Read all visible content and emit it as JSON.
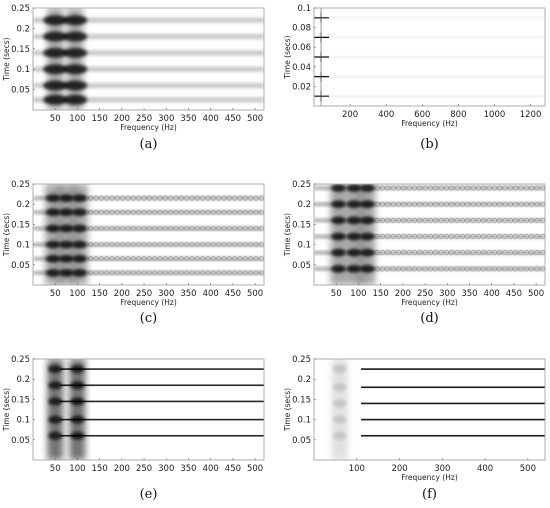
{
  "chart_data": [
    {
      "id": "a",
      "caption": "(a)",
      "type": "heatmap",
      "xlabel": "Frequency (Hz)",
      "ylabel": "Time (secs)",
      "xlim": [
        0,
        520
      ],
      "ylim": [
        0,
        0.25
      ],
      "xticks": [
        "50",
        "100",
        "150",
        "200",
        "250",
        "300",
        "350",
        "400",
        "450",
        "500"
      ],
      "xtick_values": [
        50,
        100,
        150,
        200,
        250,
        300,
        350,
        400,
        450,
        500
      ],
      "yticks": [
        "0.05",
        "0.1",
        "0.15",
        "0.2",
        "0.25"
      ],
      "ytick_values": [
        0.05,
        0.1,
        0.15,
        0.2,
        0.25
      ],
      "event_times": [
        0.025,
        0.06,
        0.1,
        0.14,
        0.18,
        0.22
      ],
      "hot_freqs": [
        50,
        95
      ]
    },
    {
      "id": "b",
      "caption": "(b)",
      "type": "heatmap",
      "xlabel": "Frequency (Hz)",
      "ylabel": "Time (secs)",
      "xlim": [
        0,
        1280
      ],
      "ylim": [
        0,
        0.1
      ],
      "xticks": [
        "200",
        "400",
        "600",
        "800",
        "1000",
        "1200"
      ],
      "xtick_values": [
        200,
        400,
        600,
        800,
        1000,
        1200
      ],
      "yticks": [
        "0.02",
        "0.04",
        "0.06",
        "0.08",
        "0.1"
      ],
      "ytick_values": [
        0.02,
        0.04,
        0.06,
        0.08,
        0.1
      ],
      "event_times": [
        0.01,
        0.03,
        0.05,
        0.07,
        0.09
      ],
      "hot_freqs": [
        50
      ]
    },
    {
      "id": "c",
      "caption": "(c)",
      "type": "heatmap",
      "xlabel": "Frequency (Hz)",
      "ylabel": "Time (secs)",
      "xlim": [
        0,
        520
      ],
      "ylim": [
        0,
        0.25
      ],
      "xticks": [
        "50",
        "100",
        "150",
        "200",
        "250",
        "300",
        "350",
        "400",
        "450",
        "500"
      ],
      "xtick_values": [
        50,
        100,
        150,
        200,
        250,
        300,
        350,
        400,
        450,
        500
      ],
      "yticks": [
        "0.05",
        "0.1",
        "0.15",
        "0.2",
        "0.25"
      ],
      "ytick_values": [
        0.05,
        0.1,
        0.15,
        0.2,
        0.25
      ],
      "event_times": [
        0.03,
        0.065,
        0.1,
        0.14,
        0.18,
        0.215
      ],
      "hot_freqs": [
        45,
        75,
        105
      ]
    },
    {
      "id": "d",
      "caption": "(d)",
      "type": "heatmap",
      "xlabel": "Frequency (Hz)",
      "ylabel": "Time (secs)",
      "xlim": [
        0,
        520
      ],
      "ylim": [
        0,
        0.25
      ],
      "xticks": [
        "50",
        "100",
        "150",
        "200",
        "250",
        "300",
        "350",
        "400",
        "450",
        "500"
      ],
      "xtick_values": [
        50,
        100,
        150,
        200,
        250,
        300,
        350,
        400,
        450,
        500
      ],
      "yticks": [
        "0.05",
        "0.1",
        "0.15",
        "0.2",
        "0.25"
      ],
      "ytick_values": [
        0.05,
        0.1,
        0.15,
        0.2,
        0.25
      ],
      "event_times": [
        0.04,
        0.08,
        0.12,
        0.16,
        0.2,
        0.24
      ],
      "hot_freqs": [
        55,
        90,
        120
      ]
    },
    {
      "id": "e",
      "caption": "(e)",
      "type": "heatmap",
      "xlabel": "",
      "ylabel": "Time (secs)",
      "xlim": [
        0,
        520
      ],
      "ylim": [
        0,
        0.25
      ],
      "xticks": [
        "50",
        "100",
        "150",
        "200",
        "250",
        "300",
        "350",
        "400",
        "450",
        "500"
      ],
      "xtick_values": [
        50,
        100,
        150,
        200,
        250,
        300,
        350,
        400,
        450,
        500
      ],
      "yticks": [
        "0.05",
        "0.1",
        "0.15",
        "0.2",
        "0.25"
      ],
      "ytick_values": [
        0.05,
        0.1,
        0.15,
        0.2,
        0.25
      ],
      "event_times": [
        0.06,
        0.1,
        0.145,
        0.185,
        0.225
      ],
      "hot_freqs": [
        50,
        100
      ]
    },
    {
      "id": "f",
      "caption": "(f)",
      "type": "heatmap",
      "xlabel": "Frequency (Hz)",
      "ylabel": "Time (secs)",
      "xlim": [
        0,
        540
      ],
      "ylim": [
        0,
        0.25
      ],
      "xticks": [
        "100",
        "200",
        "300",
        "400",
        "500"
      ],
      "xtick_values": [
        100,
        200,
        300,
        400,
        500
      ],
      "yticks": [
        "0.05",
        "0.1",
        "0.15",
        "0.2",
        "0.25"
      ],
      "ytick_values": [
        0.05,
        0.1,
        0.15,
        0.2,
        0.25
      ],
      "event_times": [
        0.06,
        0.1,
        0.14,
        0.18,
        0.225
      ],
      "hot_freqs": [
        60
      ]
    }
  ]
}
